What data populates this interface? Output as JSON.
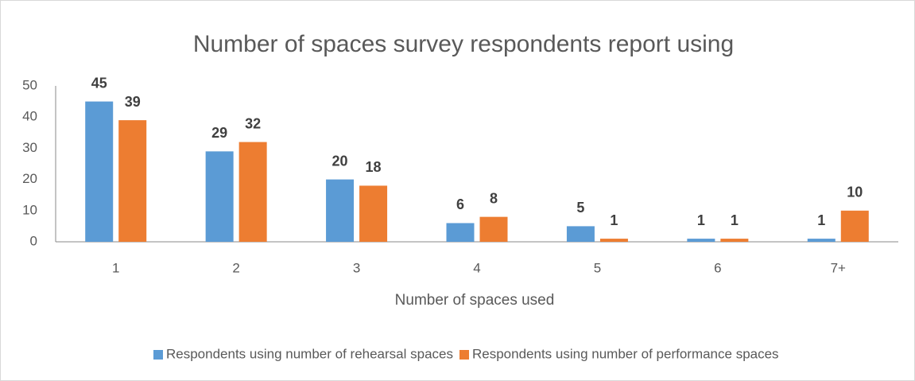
{
  "chart_data": {
    "type": "bar",
    "title": "Number of spaces survey respondents report using",
    "x_label": "Number of spaces used",
    "categories": [
      "1",
      "2",
      "3",
      "4",
      "5",
      "6",
      "7+"
    ],
    "series": [
      {
        "name": "Respondents using number of rehearsal spaces",
        "color": "#5b9bd5",
        "values": [
          45,
          29,
          20,
          6,
          5,
          1,
          1
        ]
      },
      {
        "name": "Respondents using number of performance spaces",
        "color": "#ed7d31",
        "values": [
          39,
          32,
          18,
          8,
          1,
          1,
          10
        ]
      }
    ],
    "ylim": [
      0,
      50
    ],
    "yticks": [
      0,
      10,
      20,
      30,
      40,
      50
    ],
    "grid": false,
    "legend": "bottom"
  }
}
